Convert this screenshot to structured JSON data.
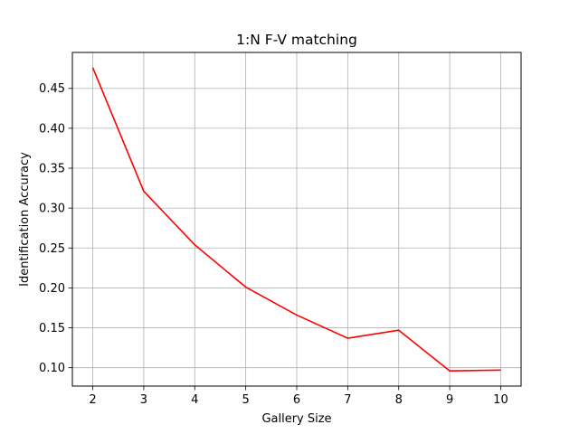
{
  "chart_data": {
    "type": "line",
    "title": "1:N F-V matching",
    "xlabel": "Gallery Size",
    "ylabel": "Identification Accuracy",
    "x": [
      2,
      3,
      4,
      5,
      6,
      7,
      8,
      9,
      10
    ],
    "series": [
      {
        "values": [
          0.476,
          0.321,
          0.254,
          0.201,
          0.166,
          0.137,
          0.147,
          0.096,
          0.097
        ],
        "color": "#ff0000"
      }
    ],
    "xlim": [
      1.6,
      10.4
    ],
    "ylim": [
      0.077,
      0.495
    ],
    "xticks": [
      "2",
      "3",
      "4",
      "5",
      "6",
      "7",
      "8",
      "9",
      "10"
    ],
    "yticks": [
      "0.10",
      "0.15",
      "0.20",
      "0.25",
      "0.30",
      "0.35",
      "0.40",
      "0.45"
    ],
    "grid": true,
    "legend": "none"
  }
}
